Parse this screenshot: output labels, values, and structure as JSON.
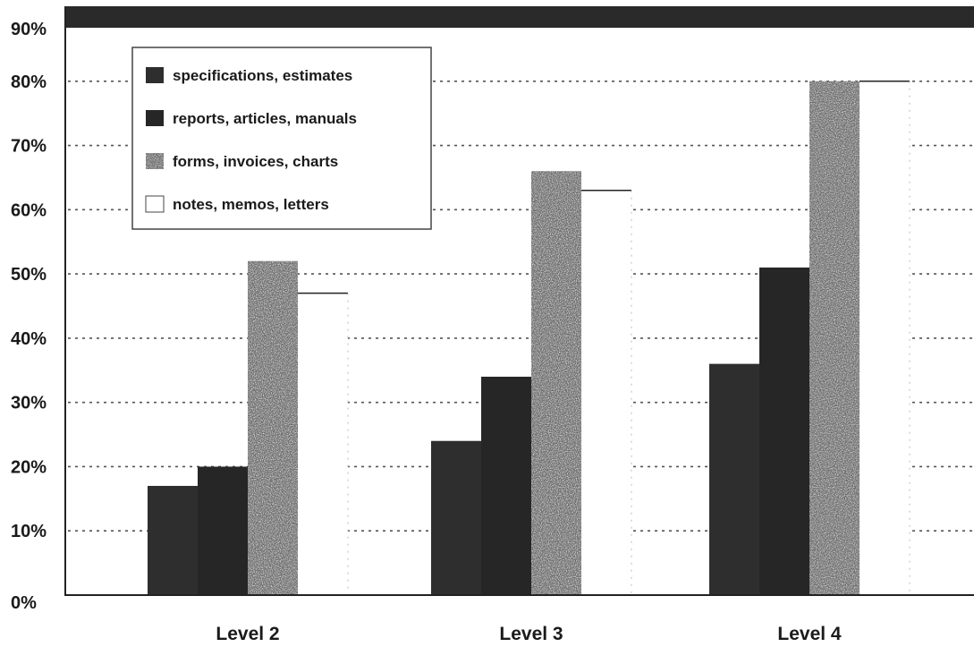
{
  "chart_data": {
    "type": "bar",
    "categories": [
      "Level 2",
      "Level 3",
      "Level 4"
    ],
    "series": [
      {
        "name": "specifications, estimates",
        "values": [
          17,
          24,
          36
        ],
        "color": "#2e2e2e"
      },
      {
        "name": "reports, articles, manuals",
        "values": [
          20,
          34,
          51
        ],
        "color": "#262626"
      },
      {
        "name": "forms, invoices, charts",
        "values": [
          52,
          66,
          80
        ],
        "color": "#6a6a6a"
      },
      {
        "name": "notes, memos, letters",
        "values": [
          47,
          63,
          80
        ],
        "color": "#ffffff"
      }
    ],
    "yticks": [
      "0%",
      "10%",
      "20%",
      "30%",
      "40%",
      "50%",
      "60%",
      "70%",
      "80%",
      "90%"
    ],
    "ylim": [
      0,
      90
    ],
    "grid": true,
    "legend_position": "top-left"
  }
}
